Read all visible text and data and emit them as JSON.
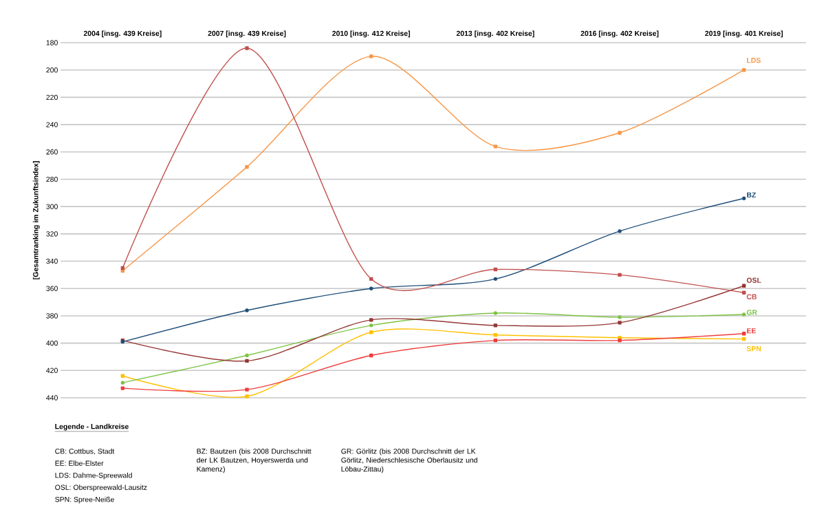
{
  "chart_data": {
    "type": "line",
    "categories": [
      "2004 [insg. 439 Kreise]",
      "2007 [insg. 439 Kreise]",
      "2010 [insg. 412 Kreise]",
      "2013 [insg. 402 Kreise]",
      "2016 [insg. 402 Kreise]",
      "2019 [insg. 401 Kreise]"
    ],
    "ylabel": "[Gesamtranking im Zukunftsindex]",
    "ylim": [
      440,
      180
    ],
    "yticks": [
      180,
      200,
      220,
      240,
      260,
      280,
      300,
      320,
      340,
      360,
      380,
      400,
      420,
      440
    ],
    "grid": "y",
    "marker": "square",
    "series": [
      {
        "name": "CB",
        "color": "#c0504d",
        "values": [
          345,
          184,
          353,
          346,
          350,
          363
        ]
      },
      {
        "name": "LDS",
        "color": "#f79646",
        "values": [
          347,
          271,
          190,
          256,
          246,
          200
        ]
      },
      {
        "name": "BZ",
        "color": "#1f4e79",
        "marker": "circle",
        "values": [
          399,
          376,
          360,
          353,
          318,
          294
        ]
      },
      {
        "name": "OSL",
        "color": "#953735",
        "values": [
          398,
          413,
          383,
          387,
          385,
          358
        ]
      },
      {
        "name": "GR",
        "color": "#7dc242",
        "marker": "circle",
        "values": [
          429,
          409,
          387,
          378,
          381,
          379
        ]
      },
      {
        "name": "EE",
        "color": "#f03c3c",
        "values": [
          433,
          434,
          409,
          398,
          398,
          393
        ]
      },
      {
        "name": "SPN",
        "color": "#ffc000",
        "values": [
          424,
          439,
          392,
          394,
          396,
          397
        ]
      }
    ],
    "annotations": [
      "Legende - Landkreise",
      "CB: Cottbus, Stadt",
      "EE: Elbe-Elster",
      "LDS: Dahme-Spreewald",
      "OSL: Oberspreewald-Lausitz",
      "SPN: Spree-Neiße",
      "BZ: Bautzen (bis 2008 Durchschnitt der LK Bautzen, Hoyerswerda und Kamenz)",
      "GR: Görlitz (bis 2008 Durchschnitt der LK Görlitz, Niederschlesische Oberlausitz und Löbau-Zittau)"
    ]
  }
}
